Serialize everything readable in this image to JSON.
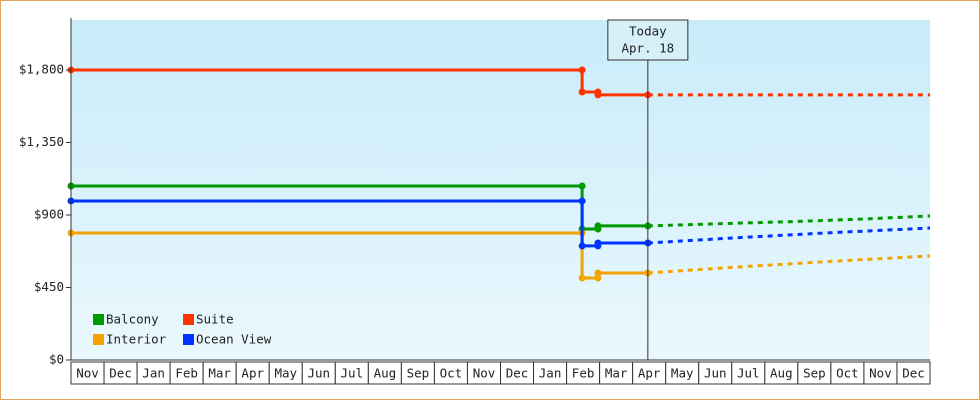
{
  "chart_data": {
    "type": "line",
    "xlim": [
      0,
      26
    ],
    "ylim": [
      0,
      2110
    ],
    "yticks": [
      {
        "value": 0,
        "label": "$0"
      },
      {
        "value": 450,
        "label": "$450"
      },
      {
        "value": 900,
        "label": "$900"
      },
      {
        "value": 1350,
        "label": "$1,350"
      },
      {
        "value": 1800,
        "label": "$1,800"
      }
    ],
    "xticks": [
      {
        "value": 0.5,
        "label": "Nov"
      },
      {
        "value": 1.5,
        "label": "Dec"
      },
      {
        "value": 2.5,
        "label": "Jan"
      },
      {
        "value": 3.5,
        "label": "Feb"
      },
      {
        "value": 4.5,
        "label": "Mar"
      },
      {
        "value": 5.5,
        "label": "Apr"
      },
      {
        "value": 6.5,
        "label": "May"
      },
      {
        "value": 7.5,
        "label": "Jun"
      },
      {
        "value": 8.5,
        "label": "Jul"
      },
      {
        "value": 9.5,
        "label": "Aug"
      },
      {
        "value": 10.5,
        "label": "Sep"
      },
      {
        "value": 11.5,
        "label": "Oct"
      },
      {
        "value": 12.5,
        "label": "Nov"
      },
      {
        "value": 13.5,
        "label": "Dec"
      },
      {
        "value": 14.5,
        "label": "Jan"
      },
      {
        "value": 15.5,
        "label": "Feb"
      },
      {
        "value": 16.5,
        "label": "Mar"
      },
      {
        "value": 17.5,
        "label": "Apr"
      },
      {
        "value": 18.5,
        "label": "May"
      },
      {
        "value": 19.5,
        "label": "Jun"
      },
      {
        "value": 20.5,
        "label": "Jul"
      },
      {
        "value": 21.5,
        "label": "Aug"
      },
      {
        "value": 22.5,
        "label": "Sep"
      },
      {
        "value": 23.5,
        "label": "Oct"
      },
      {
        "value": 24.5,
        "label": "Nov"
      },
      {
        "value": 25.5,
        "label": "Dec"
      }
    ],
    "today": {
      "x": 17.46,
      "label": [
        "Today",
        "Apr. 18"
      ]
    },
    "legend": "lower left",
    "series": [
      {
        "name": "Balcony",
        "color": "#009900",
        "x": [
          0,
          15.47,
          15.47,
          15.95,
          15.95,
          17.46
        ],
        "values": [
          1080,
          1080,
          813,
          813,
          832,
          832
        ],
        "forecast_x": [
          17.46,
          19.5,
          22,
          24,
          26
        ],
        "forecast_values": [
          832,
          845,
          860,
          875,
          894
        ]
      },
      {
        "name": "Suite",
        "color": "#ff3300",
        "x": [
          0,
          15.47,
          15.47,
          15.95,
          15.95,
          17.46
        ],
        "values": [
          1800,
          1800,
          1663,
          1663,
          1645,
          1645
        ],
        "forecast_x": [
          17.46,
          26
        ],
        "forecast_values": [
          1645,
          1645
        ]
      },
      {
        "name": "Interior",
        "color": "#f5a300",
        "x": [
          0,
          15.47,
          15.47,
          15.95,
          15.95,
          17.46
        ],
        "values": [
          788,
          788,
          509,
          509,
          540,
          540
        ],
        "forecast_x": [
          17.46,
          20,
          23,
          26
        ],
        "forecast_values": [
          540,
          575,
          612,
          646
        ]
      },
      {
        "name": "Ocean View",
        "color": "#0033ff",
        "x": [
          0,
          15.47,
          15.47,
          15.95,
          15.95,
          17.46
        ],
        "values": [
          987,
          987,
          708,
          708,
          726,
          726
        ],
        "forecast_x": [
          17.46,
          20,
          23,
          26
        ],
        "forecast_values": [
          726,
          757,
          790,
          819
        ]
      }
    ]
  }
}
